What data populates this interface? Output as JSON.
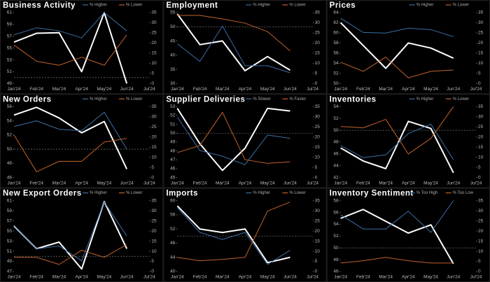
{
  "chart_data": [
    {
      "type": "line",
      "title": "Business Activity",
      "categories": [
        "Jan'24",
        "Feb'24",
        "Mar'24",
        "Apr'24",
        "May'24",
        "Jun'24",
        "Jul'24"
      ],
      "ylim": [
        49,
        61
      ],
      "yticks": [
        49,
        51,
        53,
        55,
        57,
        59,
        61
      ],
      "y2lim": [
        0,
        35
      ],
      "y2ticks": [
        0,
        5,
        10,
        15,
        20,
        25,
        30,
        35
      ],
      "hline": 50,
      "series": [
        {
          "color": "#ffffff",
          "values": [
            56,
            57.5,
            57.6,
            51,
            61,
            49,
            null
          ]
        },
        {
          "name": "% Higher",
          "color": "#3a6ea5",
          "axis": "y2",
          "values": [
            24,
            27.5,
            26,
            22.5,
            35,
            26,
            null
          ]
        },
        {
          "name": "% Lower",
          "color": "#c0622b",
          "axis": "y2",
          "values": [
            19,
            11,
            9,
            13,
            9,
            24,
            null
          ]
        }
      ]
    },
    {
      "type": "line",
      "title": "Employment",
      "categories": [
        "Jan'24",
        "Feb'24",
        "Mar'24",
        "Apr'24",
        "May'24",
        "Jun'24",
        "Jul'24"
      ],
      "ylim": [
        30,
        55
      ],
      "yticks": [
        30,
        35,
        40,
        45,
        50,
        55
      ],
      "y2lim": [
        0,
        35
      ],
      "y2ticks": [
        0,
        5,
        10,
        15,
        20,
        25,
        30,
        35
      ],
      "hline": 50,
      "series": [
        {
          "color": "#ffffff",
          "values": [
            54.5,
            43.7,
            45,
            34.5,
            39.5,
            34.7,
            null
          ]
        },
        {
          "name": "% Higher",
          "color": "#3a6ea5",
          "axis": "y2",
          "values": [
            19.6,
            10.9,
            28.4,
            8.8,
            8.8,
            5.3,
            null
          ]
        },
        {
          "name": "% Lower",
          "color": "#c0622b",
          "axis": "y2",
          "values": [
            33.6,
            33.6,
            31.9,
            29.8,
            25.6,
            16.1,
            null
          ]
        }
      ]
    },
    {
      "type": "line",
      "title": "Prices",
      "categories": [
        "Jan'24",
        "Feb'24",
        "Mar'24",
        "Apr'24",
        "May'24",
        "Jun'24",
        "Jul'24"
      ],
      "ylim": [
        50,
        64
      ],
      "yticks": [
        50,
        52,
        54,
        56,
        58,
        60,
        62,
        64
      ],
      "y2lim": [
        0,
        35
      ],
      "y2ticks": [
        0,
        5,
        10,
        15,
        20,
        25,
        30,
        35
      ],
      "series": [
        {
          "color": "#ffffff",
          "values": [
            62,
            57.5,
            53,
            58,
            57,
            55,
            null
          ]
        },
        {
          "name": "% Higher",
          "color": "#3a6ea5",
          "axis": "y2",
          "values": [
            32.2,
            25.2,
            24.9,
            27.3,
            26.6,
            23.1,
            null
          ]
        },
        {
          "name": "% Lower",
          "color": "#c0622b",
          "axis": "y2",
          "values": [
            10.5,
            6,
            13,
            2.8,
            6,
            6.7,
            null
          ]
        }
      ]
    },
    {
      "type": "line",
      "title": "New Orders",
      "categories": [
        "Jan'24",
        "Feb'24",
        "Mar'24",
        "Apr'24",
        "May'24",
        "Jun'24",
        "Jul'24"
      ],
      "ylim": [
        46,
        56
      ],
      "yticks": [
        46,
        48,
        50,
        52,
        54,
        56
      ],
      "y2lim": [
        0,
        35
      ],
      "y2ticks": [
        0,
        5,
        10,
        15,
        20,
        25,
        30,
        35
      ],
      "hline": 50,
      "series": [
        {
          "color": "#ffffff",
          "values": [
            54.8,
            55.9,
            54.4,
            52.3,
            53.9,
            47.2,
            null
          ]
        },
        {
          "name": "% Higher",
          "color": "#3a6ea5",
          "axis": "y2",
          "values": [
            25.2,
            28,
            23.8,
            23.1,
            32.2,
            14,
            null
          ]
        },
        {
          "name": "% Lower",
          "color": "#c0622b",
          "axis": "y2",
          "values": [
            21,
            2.8,
            8,
            8,
            17.5,
            19.3,
            null
          ]
        }
      ]
    },
    {
      "type": "line",
      "title": "Supplier Deliveries",
      "categories": [
        "Jan'24",
        "Feb'24",
        "Mar'24",
        "Apr'24",
        "May'24",
        "Jun'24",
        "Jul'24"
      ],
      "ylim": [
        45,
        53
      ],
      "yticks": [
        45,
        46,
        47,
        48,
        49,
        50,
        51,
        52,
        53
      ],
      "y2lim": [
        0,
        35
      ],
      "y2ticks": [
        0,
        5,
        10,
        15,
        20,
        25,
        30,
        35
      ],
      "hline": 50,
      "series": [
        {
          "color": "#ffffff",
          "values": [
            52.8,
            48.8,
            45.8,
            48.3,
            52.8,
            52.5,
            null
          ]
        },
        {
          "name": "% Slower",
          "color": "#3a6ea5",
          "axis": "y2",
          "values": [
            29.8,
            13.3,
            10.5,
            6.3,
            21,
            19.3,
            null
          ]
        },
        {
          "name": "% Faster",
          "color": "#c0622b",
          "axis": "y2",
          "values": [
            12.3,
            15.8,
            32.2,
            8.8,
            7,
            7.7,
            null
          ]
        }
      ]
    },
    {
      "type": "line",
      "title": "Inventories",
      "categories": [
        "Jan'24",
        "Feb'24",
        "Mar'24",
        "Apr'24",
        "May'24",
        "Jun'24",
        "Jul'24"
      ],
      "ylim": [
        42,
        54
      ],
      "yticks": [
        42,
        44,
        46,
        48,
        50,
        52,
        54
      ],
      "y2lim": [
        0,
        35
      ],
      "y2ticks": [
        0,
        5,
        10,
        15,
        20,
        25,
        30,
        35
      ],
      "hline": 50,
      "series": [
        {
          "color": "#ffffff",
          "values": [
            47,
            44.8,
            43.5,
            51.5,
            50.3,
            42.8,
            null
          ]
        },
        {
          "name": "% Higher",
          "color": "#3a6ea5",
          "axis": "y2",
          "values": [
            15.8,
            9.8,
            11.2,
            21.7,
            26.3,
            8.8,
            null
          ]
        },
        {
          "name": "% Lower",
          "color": "#c0622b",
          "axis": "y2",
          "values": [
            25.2,
            24.5,
            28.7,
            11.6,
            19.3,
            35,
            null
          ]
        }
      ]
    },
    {
      "type": "line",
      "title": "New Export Orders",
      "categories": [
        "Jan'24",
        "Feb'24",
        "Mar'24",
        "Apr'24",
        "May'24",
        "Jun'24",
        "Jul'24"
      ],
      "ylim": [
        47,
        61
      ],
      "yticks": [
        47,
        49,
        51,
        53,
        55,
        57,
        59,
        61
      ],
      "y2lim": [
        0,
        35
      ],
      "y2ticks": [
        0,
        5,
        10,
        15,
        20,
        25,
        30,
        35
      ],
      "hline": 50,
      "series": [
        {
          "color": "#ffffff",
          "values": [
            56,
            51.5,
            52.8,
            47.5,
            60.8,
            51.5,
            null
          ]
        },
        {
          "name": "% Higher",
          "color": "#3a6ea5",
          "axis": "y2",
          "values": [
            22.8,
            11.2,
            12.6,
            5.3,
            34.3,
            17.5,
            null
          ]
        },
        {
          "name": "% Lower",
          "color": "#c0622b",
          "axis": "y2",
          "values": [
            7,
            7,
            3.5,
            10.5,
            7,
            13.3,
            null
          ]
        }
      ]
    },
    {
      "type": "line",
      "title": "Imports",
      "categories": [
        "Jan'24",
        "Feb'24",
        "Mar'24",
        "Apr'24",
        "May'24",
        "Jun'24",
        "Jul'24"
      ],
      "ylim": [
        40,
        60
      ],
      "yticks": [
        40,
        44,
        48,
        52,
        56,
        60
      ],
      "y2lim": [
        0,
        35
      ],
      "y2ticks": [
        0,
        5,
        10,
        15,
        20,
        25,
        30,
        35
      ],
      "hline": 50,
      "series": [
        {
          "color": "#ffffff",
          "values": [
            58.5,
            52,
            51,
            52,
            42.5,
            44,
            null
          ]
        },
        {
          "name": "% Higher",
          "color": "#3a6ea5",
          "axis": "y2",
          "values": [
            31.5,
            19.3,
            15.8,
            19.3,
            3.5,
            10.5,
            null
          ]
        },
        {
          "name": "% Lower",
          "color": "#c0622b",
          "axis": "y2",
          "values": [
            7,
            5.3,
            6,
            7,
            29.8,
            34.3,
            null
          ]
        }
      ]
    },
    {
      "type": "line",
      "title": "Inventory Sentiment",
      "categories": [
        "Jan'24",
        "Feb'24",
        "Mar'24",
        "Apr'24",
        "May'24",
        "Jun'24",
        "Jul'24"
      ],
      "ylim": [
        46,
        58
      ],
      "yticks": [
        46,
        48,
        50,
        52,
        54,
        56,
        58
      ],
      "y2lim": [
        0,
        35
      ],
      "y2ticks": [
        0,
        5,
        10,
        15,
        20,
        25,
        30,
        35
      ],
      "hline": 50,
      "series": [
        {
          "color": "#ffffff",
          "values": [
            55,
            56.5,
            54.5,
            52.5,
            53.9,
            47.3,
            null
          ]
        },
        {
          "name": "% Too High",
          "color": "#3a6ea5",
          "axis": "y2",
          "values": [
            28,
            21,
            21,
            29.8,
            19.3,
            35,
            null
          ]
        },
        {
          "name": "% Too Low",
          "color": "#c0622b",
          "axis": "y2",
          "values": [
            4.2,
            5.3,
            7,
            5.3,
            4.2,
            4.2,
            null
          ]
        }
      ]
    }
  ]
}
